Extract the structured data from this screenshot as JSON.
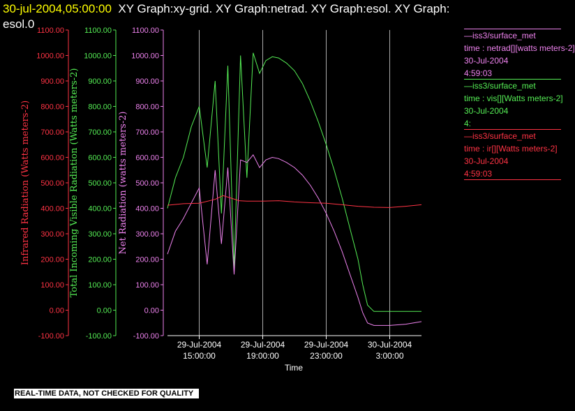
{
  "header": {
    "timestamp": "30-jul-2004,05:00:00",
    "titles": "XY Graph:xy-grid.  XY Graph:netrad.  XY Graph:esol.  XY Graph:",
    "titles_line2": "esol.0"
  },
  "footer": "REAL-TIME DATA, NOT CHECKED FOR QUALITY",
  "colors": {
    "infrared": "#ff3344",
    "visible": "#55ee55",
    "netrad": "#ee82ee",
    "grid": "#ffffff"
  },
  "legend": [
    {
      "source": "—iss3/surface_met",
      "variable": "time : netrad[][watts meters-2]",
      "date": "30-Jul-2004",
      "time": "4:59:03",
      "color": "#ee82ee"
    },
    {
      "source": "—iss3/surface_met",
      "variable": "time : vis[][Watts meters-2]",
      "date": "30-Jul-2004",
      "time": "4:",
      "color": "#55ee55"
    },
    {
      "source": "—iss3/surface_met",
      "variable": "time : ir[][Watts meters-2]",
      "date": "30-Jul-2004",
      "time": "4:59:03",
      "color": "#ff3344"
    }
  ],
  "chart_data": {
    "type": "line",
    "xlabel": "Time",
    "x_ticks": [
      {
        "date": "29-Jul-2004",
        "time": "15:00:00"
      },
      {
        "date": "29-Jul-2004",
        "time": "19:00:00"
      },
      {
        "date": "29-Jul-2004",
        "time": "23:00:00"
      },
      {
        "date": "30-Jul-2004",
        "time": "3:00:00"
      }
    ],
    "xlim": [
      "29-Jul-2004 13:00",
      "30-Jul-2004 05:00"
    ],
    "axes": [
      {
        "id": "ir",
        "label": "Infrared Radiation (Watts meters-2)",
        "ylim": [
          -100,
          1100
        ],
        "color": "#ff3344",
        "ticks": [
          "-100.00",
          "0.00",
          "100.00",
          "200.00",
          "300.00",
          "400.00",
          "500.00",
          "600.00",
          "700.00",
          "800.00",
          "900.00",
          "1000.00",
          "1100.00"
        ]
      },
      {
        "id": "vis",
        "label": "Total Incoming Visible Radiation (Watts meters-2)",
        "ylim": [
          -100,
          1100
        ],
        "color": "#55ee55",
        "ticks": [
          "-100.00",
          "0.00",
          "100.00",
          "200.00",
          "300.00",
          "400.00",
          "500.00",
          "600.00",
          "700.00",
          "800.00",
          "900.00",
          "1000.00",
          "1100.00"
        ]
      },
      {
        "id": "netrad",
        "label": "Net Radiation (watts meters-2)",
        "ylim": [
          -100,
          1100
        ],
        "color": "#ee82ee",
        "ticks": [
          "-100.00",
          "0.00",
          "100.00",
          "200.00",
          "300.00",
          "400.00",
          "500.00",
          "600.00",
          "700.00",
          "800.00",
          "900.00",
          "1000.00",
          "1100.00"
        ]
      }
    ],
    "grid": "vertical lines at x ticks",
    "series": [
      {
        "axis": "vis",
        "color": "#55ee55",
        "x": [
          13.0,
          13.5,
          14.0,
          14.5,
          15.0,
          15.5,
          16.0,
          16.4,
          16.8,
          17.2,
          17.6,
          18.0,
          18.4,
          18.8,
          19.2,
          19.6,
          20.0,
          20.5,
          21.0,
          21.5,
          22.0,
          22.5,
          23.0,
          23.5,
          24.0,
          24.5,
          25.0,
          25.3,
          25.6,
          26.0,
          27.0,
          28.0,
          29.0
        ],
        "y": [
          400,
          520,
          600,
          720,
          800,
          560,
          900,
          380,
          960,
          160,
          1000,
          520,
          1010,
          930,
          980,
          995,
          990,
          970,
          940,
          890,
          820,
          740,
          650,
          550,
          440,
          320,
          200,
          100,
          20,
          -5,
          -5,
          -5,
          -5
        ]
      },
      {
        "axis": "netrad",
        "color": "#ee82ee",
        "x": [
          13.0,
          13.5,
          14.0,
          14.5,
          15.0,
          15.5,
          16.0,
          16.4,
          16.8,
          17.2,
          17.6,
          18.0,
          18.4,
          18.8,
          19.2,
          19.6,
          20.0,
          20.5,
          21.0,
          21.5,
          22.0,
          22.5,
          23.0,
          23.5,
          24.0,
          24.5,
          25.0,
          25.3,
          25.6,
          26.0,
          27.0,
          28.0,
          29.0
        ],
        "y": [
          220,
          310,
          360,
          420,
          480,
          180,
          550,
          260,
          560,
          140,
          590,
          580,
          610,
          560,
          590,
          600,
          595,
          580,
          560,
          530,
          490,
          440,
          380,
          310,
          230,
          140,
          50,
          -10,
          -50,
          -60,
          -60,
          -55,
          -45
        ]
      },
      {
        "axis": "ir",
        "color": "#ff3344",
        "x": [
          13.0,
          14.0,
          15.0,
          16.0,
          16.5,
          17.0,
          17.5,
          18.0,
          19.0,
          20.0,
          21.0,
          22.0,
          23.0,
          24.0,
          25.0,
          26.0,
          27.0,
          28.0,
          29.0
        ],
        "y": [
          412,
          418,
          420,
          435,
          450,
          440,
          430,
          428,
          428,
          430,
          425,
          422,
          420,
          414,
          408,
          404,
          403,
          408,
          414
        ]
      }
    ]
  }
}
